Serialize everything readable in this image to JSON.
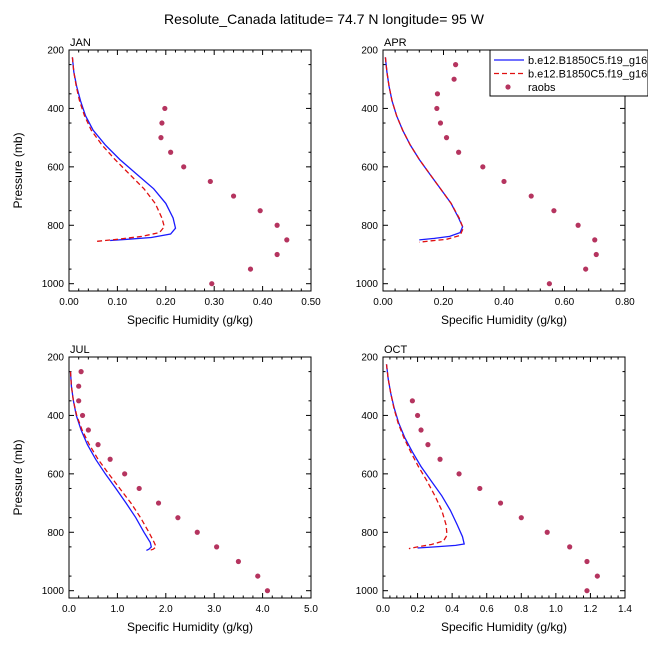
{
  "figure_title": "Resolute_Canada  latitude= 74.7 N longitude= 95 W",
  "colors": {
    "model_1": "#1a1aff",
    "model_2": "#e01010",
    "raobs": "#b5345f"
  },
  "legend": {
    "entries": [
      {
        "label": "b.e12.B1850C5.f19_g16",
        "style": "solid",
        "color_key": "model_1"
      },
      {
        "label": "b.e12.B1850C5.f19_g16",
        "style": "dashed",
        "color_key": "model_2"
      },
      {
        "label": "raobs",
        "style": "marker",
        "color_key": "raobs"
      }
    ]
  },
  "chart_data": [
    {
      "type": "line",
      "panel": "JAN",
      "xlabel": "Specific Humidity (g/kg)",
      "ylabel": "Pressure (mb)",
      "xlim": [
        0,
        0.5
      ],
      "ylim": [
        200,
        1025
      ],
      "y_inverted": true,
      "x_ticks": [
        "0.00",
        "0.10",
        "0.20",
        "0.30",
        "0.40",
        "0.50"
      ],
      "x_tick_values": [
        0,
        0.1,
        0.2,
        0.3,
        0.4,
        0.5
      ],
      "y_ticks": [
        "200",
        "400",
        "600",
        "800",
        "1000"
      ],
      "y_tick_values": [
        200,
        400,
        600,
        800,
        1000
      ],
      "series": [
        {
          "name": "b.e12.B1850C5.f19_g16",
          "style": "solid",
          "color_key": "model_1",
          "points": [
            [
              0.007,
              225
            ],
            [
              0.01,
              275
            ],
            [
              0.016,
              325
            ],
            [
              0.024,
              375
            ],
            [
              0.034,
              425
            ],
            [
              0.05,
              475
            ],
            [
              0.075,
              525
            ],
            [
              0.105,
              575
            ],
            [
              0.14,
              625
            ],
            [
              0.175,
              675
            ],
            [
              0.2,
              725
            ],
            [
              0.215,
              775
            ],
            [
              0.22,
              810
            ],
            [
              0.21,
              830
            ],
            [
              0.17,
              842
            ],
            [
              0.12,
              848
            ],
            [
              0.085,
              852
            ]
          ]
        },
        {
          "name": "b.e12.B1850C5.f19_g16",
          "style": "dashed",
          "color_key": "model_2",
          "points": [
            [
              0.007,
              225
            ],
            [
              0.01,
              275
            ],
            [
              0.015,
              325
            ],
            [
              0.022,
              375
            ],
            [
              0.032,
              425
            ],
            [
              0.046,
              475
            ],
            [
              0.068,
              525
            ],
            [
              0.095,
              575
            ],
            [
              0.125,
              625
            ],
            [
              0.155,
              675
            ],
            [
              0.178,
              725
            ],
            [
              0.192,
              775
            ],
            [
              0.197,
              805
            ],
            [
              0.187,
              825
            ],
            [
              0.15,
              838
            ],
            [
              0.1,
              848
            ],
            [
              0.058,
              855
            ]
          ]
        },
        {
          "name": "raobs",
          "style": "marker",
          "color_key": "raobs",
          "points": [
            [
              0.198,
              400
            ],
            [
              0.192,
              450
            ],
            [
              0.19,
              500
            ],
            [
              0.21,
              550
            ],
            [
              0.237,
              600
            ],
            [
              0.292,
              650
            ],
            [
              0.34,
              700
            ],
            [
              0.395,
              750
            ],
            [
              0.43,
              800
            ],
            [
              0.45,
              850
            ],
            [
              0.43,
              900
            ],
            [
              0.375,
              950
            ],
            [
              0.295,
              1000
            ]
          ]
        }
      ]
    },
    {
      "type": "line",
      "panel": "APR",
      "xlabel": "Specific Humidity (g/kg)",
      "ylabel": "",
      "xlim": [
        0,
        0.8
      ],
      "ylim": [
        200,
        1025
      ],
      "y_inverted": true,
      "x_ticks": [
        "0.00",
        "0.20",
        "0.40",
        "0.60",
        "0.80"
      ],
      "x_tick_values": [
        0,
        0.2,
        0.4,
        0.6,
        0.8
      ],
      "y_ticks": [
        "200",
        "400",
        "600",
        "800",
        "1000"
      ],
      "y_tick_values": [
        200,
        400,
        600,
        800,
        1000
      ],
      "series": [
        {
          "name": "b.e12.B1850C5.f19_g16",
          "style": "solid",
          "color_key": "model_1",
          "points": [
            [
              0.008,
              225
            ],
            [
              0.013,
              275
            ],
            [
              0.02,
              325
            ],
            [
              0.03,
              375
            ],
            [
              0.045,
              425
            ],
            [
              0.065,
              475
            ],
            [
              0.09,
              525
            ],
            [
              0.12,
              575
            ],
            [
              0.155,
              625
            ],
            [
              0.19,
              675
            ],
            [
              0.225,
              725
            ],
            [
              0.25,
              775
            ],
            [
              0.263,
              805
            ],
            [
              0.255,
              825
            ],
            [
              0.22,
              838
            ],
            [
              0.17,
              845
            ],
            [
              0.12,
              850
            ]
          ]
        },
        {
          "name": "b.e12.B1850C5.f19_g16",
          "style": "dashed",
          "color_key": "model_2",
          "points": [
            [
              0.008,
              225
            ],
            [
              0.013,
              275
            ],
            [
              0.02,
              325
            ],
            [
              0.03,
              375
            ],
            [
              0.045,
              425
            ],
            [
              0.065,
              475
            ],
            [
              0.09,
              525
            ],
            [
              0.12,
              575
            ],
            [
              0.155,
              625
            ],
            [
              0.19,
              675
            ],
            [
              0.225,
              725
            ],
            [
              0.252,
              775
            ],
            [
              0.265,
              810
            ],
            [
              0.255,
              835
            ],
            [
              0.21,
              848
            ],
            [
              0.16,
              853
            ],
            [
              0.12,
              858
            ]
          ]
        },
        {
          "name": "raobs",
          "style": "marker",
          "color_key": "raobs",
          "points": [
            [
              0.24,
              250
            ],
            [
              0.235,
              300
            ],
            [
              0.18,
              350
            ],
            [
              0.178,
              400
            ],
            [
              0.19,
              450
            ],
            [
              0.21,
              500
            ],
            [
              0.25,
              550
            ],
            [
              0.33,
              600
            ],
            [
              0.4,
              650
            ],
            [
              0.49,
              700
            ],
            [
              0.565,
              750
            ],
            [
              0.645,
              800
            ],
            [
              0.7,
              850
            ],
            [
              0.705,
              900
            ],
            [
              0.67,
              950
            ],
            [
              0.55,
              1000
            ]
          ]
        }
      ]
    },
    {
      "type": "line",
      "panel": "JUL",
      "xlabel": "Specific Humidity (g/kg)",
      "ylabel": "Pressure (mb)",
      "xlim": [
        0,
        5.0
      ],
      "ylim": [
        200,
        1025
      ],
      "y_inverted": true,
      "x_ticks": [
        "0.0",
        "1.0",
        "2.0",
        "3.0",
        "4.0",
        "5.0"
      ],
      "x_tick_values": [
        0,
        1,
        2,
        3,
        4,
        5
      ],
      "y_ticks": [
        "200",
        "400",
        "600",
        "800",
        "1000"
      ],
      "y_tick_values": [
        200,
        400,
        600,
        800,
        1000
      ],
      "series": [
        {
          "name": "b.e12.B1850C5.f19_g16",
          "style": "solid",
          "color_key": "model_1",
          "points": [
            [
              0.03,
              250
            ],
            [
              0.05,
              300
            ],
            [
              0.09,
              350
            ],
            [
              0.15,
              400
            ],
            [
              0.25,
              450
            ],
            [
              0.38,
              500
            ],
            [
              0.55,
              550
            ],
            [
              0.75,
              600
            ],
            [
              0.97,
              650
            ],
            [
              1.18,
              700
            ],
            [
              1.38,
              750
            ],
            [
              1.55,
              800
            ],
            [
              1.68,
              835
            ],
            [
              1.7,
              850
            ],
            [
              1.65,
              858
            ],
            [
              1.6,
              862
            ]
          ]
        },
        {
          "name": "b.e12.B1850C5.f19_g16",
          "style": "dashed",
          "color_key": "model_2",
          "points": [
            [
              0.03,
              250
            ],
            [
              0.05,
              300
            ],
            [
              0.09,
              350
            ],
            [
              0.16,
              400
            ],
            [
              0.27,
              450
            ],
            [
              0.42,
              500
            ],
            [
              0.6,
              550
            ],
            [
              0.82,
              600
            ],
            [
              1.05,
              650
            ],
            [
              1.28,
              700
            ],
            [
              1.48,
              750
            ],
            [
              1.65,
              800
            ],
            [
              1.76,
              835
            ],
            [
              1.8,
              850
            ],
            [
              1.74,
              858
            ],
            [
              1.65,
              863
            ]
          ]
        },
        {
          "name": "raobs",
          "style": "marker",
          "color_key": "raobs",
          "points": [
            [
              0.25,
              250
            ],
            [
              0.2,
              300
            ],
            [
              0.2,
              350
            ],
            [
              0.28,
              400
            ],
            [
              0.4,
              450
            ],
            [
              0.6,
              500
            ],
            [
              0.85,
              550
            ],
            [
              1.15,
              600
            ],
            [
              1.45,
              650
            ],
            [
              1.85,
              700
            ],
            [
              2.25,
              750
            ],
            [
              2.65,
              800
            ],
            [
              3.05,
              850
            ],
            [
              3.5,
              900
            ],
            [
              3.9,
              950
            ],
            [
              4.1,
              1000
            ]
          ]
        }
      ]
    },
    {
      "type": "line",
      "panel": "OCT",
      "xlabel": "Specific Humidity (g/kg)",
      "ylabel": "",
      "xlim": [
        0,
        1.4
      ],
      "ylim": [
        200,
        1025
      ],
      "y_inverted": true,
      "x_ticks": [
        "0.0",
        "0.2",
        "0.4",
        "0.6",
        "0.8",
        "1.0",
        "1.2",
        "1.4"
      ],
      "x_tick_values": [
        0,
        0.2,
        0.4,
        0.6,
        0.8,
        1.0,
        1.2,
        1.4
      ],
      "y_ticks": [
        "200",
        "400",
        "600",
        "800",
        "1000"
      ],
      "y_tick_values": [
        200,
        400,
        600,
        800,
        1000
      ],
      "series": [
        {
          "name": "b.e12.B1850C5.f19_g16",
          "style": "solid",
          "color_key": "model_1",
          "points": [
            [
              0.02,
              225
            ],
            [
              0.03,
              275
            ],
            [
              0.045,
              325
            ],
            [
              0.065,
              375
            ],
            [
              0.09,
              425
            ],
            [
              0.125,
              475
            ],
            [
              0.17,
              525
            ],
            [
              0.22,
              575
            ],
            [
              0.28,
              625
            ],
            [
              0.34,
              675
            ],
            [
              0.39,
              725
            ],
            [
              0.43,
              775
            ],
            [
              0.46,
              815
            ],
            [
              0.47,
              840
            ],
            [
              0.42,
              845
            ],
            [
              0.3,
              850
            ],
            [
              0.2,
              854
            ]
          ]
        },
        {
          "name": "b.e12.B1850C5.f19_g16",
          "style": "dashed",
          "color_key": "model_2",
          "points": [
            [
              0.02,
              225
            ],
            [
              0.03,
              275
            ],
            [
              0.045,
              325
            ],
            [
              0.063,
              375
            ],
            [
              0.087,
              425
            ],
            [
              0.12,
              475
            ],
            [
              0.16,
              525
            ],
            [
              0.205,
              575
            ],
            [
              0.255,
              625
            ],
            [
              0.3,
              675
            ],
            [
              0.34,
              725
            ],
            [
              0.365,
              775
            ],
            [
              0.37,
              810
            ],
            [
              0.35,
              830
            ],
            [
              0.28,
              842
            ],
            [
              0.2,
              850
            ],
            [
              0.15,
              856
            ]
          ]
        },
        {
          "name": "raobs",
          "style": "marker",
          "color_key": "raobs",
          "points": [
            [
              0.17,
              350
            ],
            [
              0.2,
              400
            ],
            [
              0.22,
              450
            ],
            [
              0.26,
              500
            ],
            [
              0.33,
              550
            ],
            [
              0.44,
              600
            ],
            [
              0.56,
              650
            ],
            [
              0.68,
              700
            ],
            [
              0.8,
              750
            ],
            [
              0.95,
              800
            ],
            [
              1.08,
              850
            ],
            [
              1.18,
              900
            ],
            [
              1.24,
              950
            ],
            [
              1.18,
              1000
            ]
          ]
        }
      ]
    }
  ]
}
